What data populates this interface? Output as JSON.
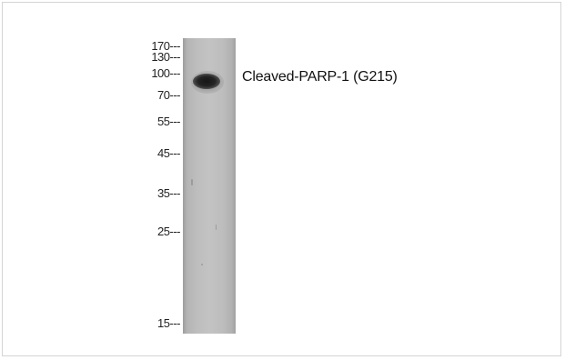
{
  "markers": [
    {
      "label": "170---"
    },
    {
      "label": "130---"
    },
    {
      "label": "100---"
    },
    {
      "label": "70---"
    },
    {
      "label": "55---"
    },
    {
      "label": "45---"
    },
    {
      "label": "35---"
    },
    {
      "label": "25---"
    },
    {
      "label": "15---"
    }
  ],
  "band_label": "Cleaved-PARP-1 (G215)",
  "colors": {
    "lane": "#bdbdbd",
    "band": "#1a1a1a",
    "text": "#222222"
  }
}
